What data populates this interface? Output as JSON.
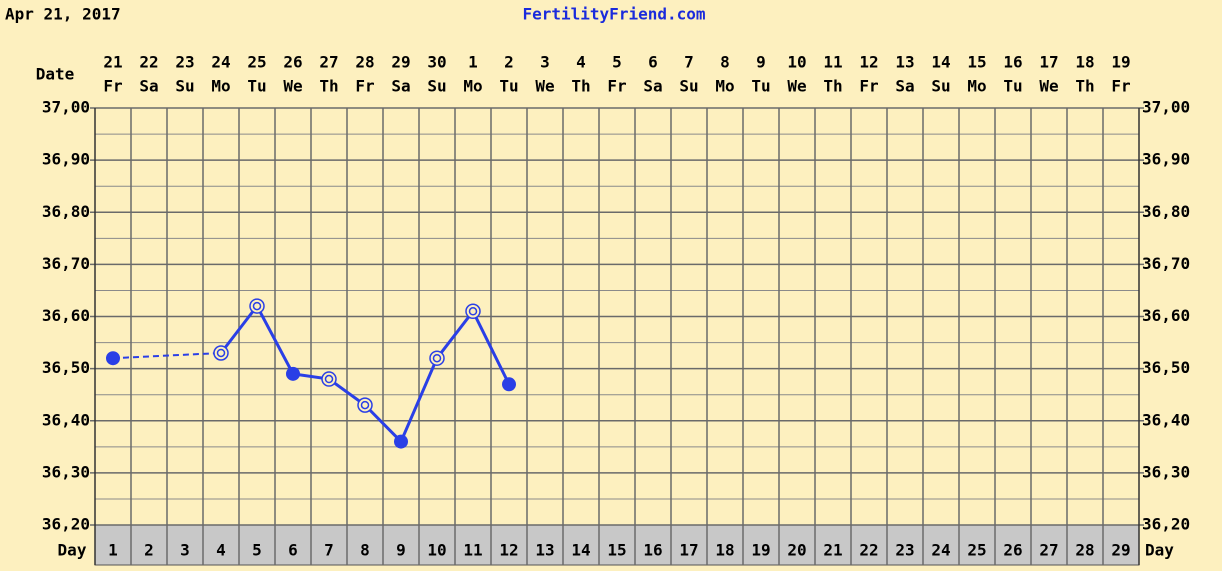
{
  "date_heading": "Apr 21, 2017",
  "site": "FertilityFriend.com",
  "chart_data": {
    "type": "line",
    "date_label": "Date",
    "day_label": "Day",
    "dates": [
      "21",
      "22",
      "23",
      "24",
      "25",
      "26",
      "27",
      "28",
      "29",
      "30",
      "1",
      "2",
      "3",
      "4",
      "5",
      "6",
      "7",
      "8",
      "9",
      "10",
      "11",
      "12",
      "13",
      "14",
      "15",
      "16",
      "17",
      "18",
      "19"
    ],
    "weekdays": [
      "Fr",
      "Sa",
      "Su",
      "Mo",
      "Tu",
      "We",
      "Th",
      "Fr",
      "Sa",
      "Su",
      "Mo",
      "Tu",
      "We",
      "Th",
      "Fr",
      "Sa",
      "Su",
      "Mo",
      "Tu",
      "We",
      "Th",
      "Fr",
      "Sa",
      "Su",
      "Mo",
      "Tu",
      "We",
      "Th",
      "Fr"
    ],
    "categories": [
      1,
      2,
      3,
      4,
      5,
      6,
      7,
      8,
      9,
      10,
      11,
      12,
      13,
      14,
      15,
      16,
      17,
      18,
      19,
      20,
      21,
      22,
      23,
      24,
      25,
      26,
      27,
      28,
      29
    ],
    "values": [
      36.52,
      null,
      null,
      36.53,
      36.62,
      36.49,
      36.48,
      36.43,
      36.36,
      36.52,
      36.61,
      36.47,
      null,
      null,
      null,
      null,
      null,
      null,
      null,
      null,
      null,
      null,
      null,
      null,
      null,
      null,
      null,
      null,
      null
    ],
    "filled": [
      true,
      false,
      false,
      false,
      false,
      true,
      false,
      false,
      true,
      false,
      false,
      true,
      false,
      false,
      false,
      false,
      false,
      false,
      false,
      false,
      false,
      false,
      false,
      false,
      false,
      false,
      false,
      false,
      false
    ],
    "gaps_dashed": true,
    "color": "#2a3fe6",
    "ylim": [
      36.2,
      37.0
    ],
    "yticks": [
      {
        "value": 36.2,
        "label": "36,20"
      },
      {
        "value": 36.3,
        "label": "36,30"
      },
      {
        "value": 36.4,
        "label": "36,40"
      },
      {
        "value": 36.5,
        "label": "36,50"
      },
      {
        "value": 36.6,
        "label": "36,60"
      },
      {
        "value": 36.7,
        "label": "36,70"
      },
      {
        "value": 36.8,
        "label": "36,80"
      },
      {
        "value": 36.9,
        "label": "36,90"
      },
      {
        "value": 37.0,
        "label": "37,00"
      }
    ],
    "minor_grid": true,
    "grid": true
  }
}
